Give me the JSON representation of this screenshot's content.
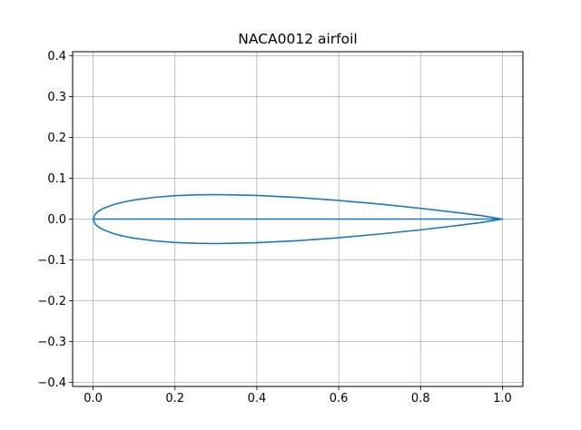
{
  "chart_data": {
    "type": "line",
    "title": "NACA0012 airfoil",
    "xlabel": "",
    "ylabel": "",
    "xlim": [
      -0.05,
      1.05
    ],
    "ylim": [
      -0.41,
      0.41
    ],
    "x_ticks": [
      0.0,
      0.2,
      0.4,
      0.6,
      0.8,
      1.0
    ],
    "x_tick_labels": [
      "0.0",
      "0.2",
      "0.4",
      "0.6",
      "0.8",
      "1.0"
    ],
    "y_ticks": [
      -0.4,
      -0.3,
      -0.2,
      -0.1,
      0.0,
      0.1,
      0.2,
      0.3,
      0.4
    ],
    "y_tick_labels": [
      "−0.4",
      "−0.3",
      "−0.2",
      "−0.1",
      "0.0",
      "0.1",
      "0.2",
      "0.3",
      "0.4"
    ],
    "grid": true,
    "series": [
      {
        "color": "#1f77b4",
        "x": [
          1.0,
          0.95,
          0.9,
          0.8,
          0.7,
          0.6,
          0.5,
          0.4,
          0.3,
          0.25,
          0.2,
          0.15,
          0.1,
          0.075,
          0.05,
          0.025,
          0.0125,
          0.005,
          0.0,
          0.005,
          0.0125,
          0.025,
          0.05,
          0.075,
          0.1,
          0.15,
          0.2,
          0.25,
          0.3,
          0.4,
          0.5,
          0.6,
          0.7,
          0.8,
          0.9,
          0.95,
          1.0,
          0.0
        ],
        "y": [
          0.0,
          0.0081,
          0.0145,
          0.0264,
          0.0367,
          0.0456,
          0.0529,
          0.058,
          0.06,
          0.0594,
          0.0574,
          0.0533,
          0.0468,
          0.042,
          0.0356,
          0.0262,
          0.0189,
          0.0121,
          0.0,
          -0.0121,
          -0.0189,
          -0.0262,
          -0.0356,
          -0.042,
          -0.0468,
          -0.0533,
          -0.0574,
          -0.0594,
          -0.06,
          -0.058,
          -0.0529,
          -0.0456,
          -0.0367,
          -0.0264,
          -0.0145,
          -0.0081,
          0.0,
          0.0
        ]
      }
    ]
  }
}
